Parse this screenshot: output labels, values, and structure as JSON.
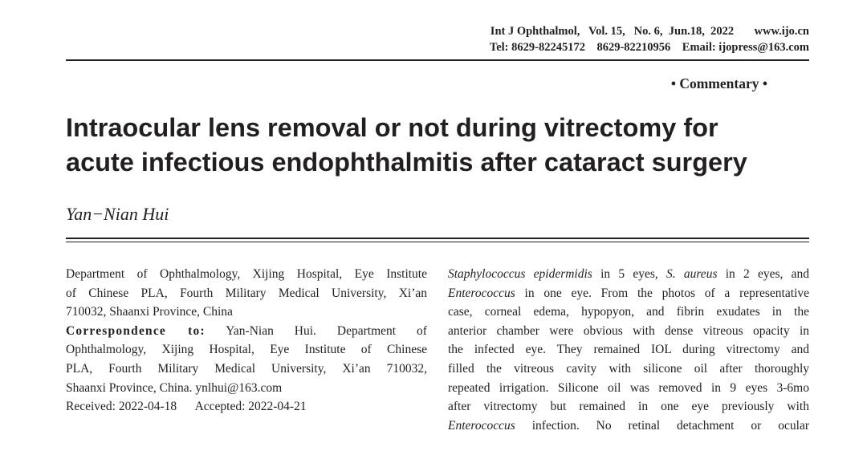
{
  "header": {
    "line1": "Int J Ophthalmol,   Vol. 15,   No. 6,  Jun.18,  2022       www.ijo.cn",
    "line2": "Tel: 8629-82245172    8629-82210956    Email: ijopress@163.com"
  },
  "section": "• Commentary •",
  "title": [
    "Intraocular lens removal or not during vitrectomy for",
    "acute infectious endophthalmitis after cataract surgery"
  ],
  "author": "Yan−Nian Hui",
  "affiliation": [
    "Department of Ophthalmology, Xijing Hospital, Eye Institute",
    "of Chinese PLA, Fourth Military Medical University, Xi’an",
    "710032, Shaanxi Province, China"
  ],
  "correspondence": {
    "label": "Correspondence to:",
    "lines": [
      " Yan-Nian Hui. Department of",
      "Ophthalmology, Xijing Hospital, Eye Institute of Chinese",
      "PLA, Fourth Military Medical University, Xi’an 710032,",
      "Shaanxi Province, China. ynlhui@163.com"
    ]
  },
  "dates": "Received: 2022-04-18      Accepted: 2022-04-21",
  "body": {
    "l1a": "Staphylococcus epidermidis",
    "l1b": " in 5 eyes, ",
    "l1c": "S. aureus",
    "l1d": " in 2 eyes, and",
    "l2a": "Enterococcus",
    "l2b": " in one eye. From the photos of a representative",
    "l3": "case, corneal edema, hypopyon, and fibrin exudates in the",
    "l4": "anterior chamber were obvious with dense vitreous opacity in",
    "l5": "the infected eye. They remained IOL during vitrectomy and",
    "l6": "filled the vitreous cavity with silicone oil after thoroughly",
    "l7": "repeated irrigation. Silicone oil was removed in 9 eyes 3-6mo",
    "l8": "after vitrectomy but remained in one eye previously with",
    "l9a": "Enterococcus",
    "l9b": " infection. No retinal detachment or ocular"
  }
}
